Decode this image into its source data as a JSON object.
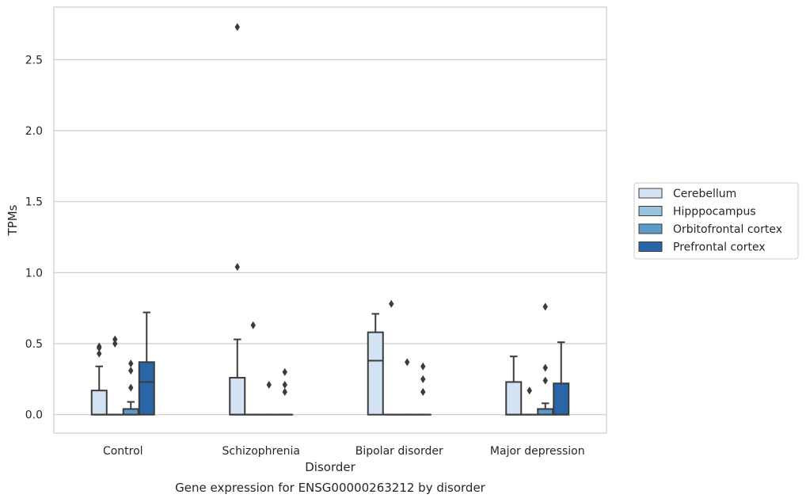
{
  "chart_data": {
    "type": "box",
    "title": "",
    "caption": "Gene expression for ENSG00000263212 by disorder",
    "xlabel": "Disorder",
    "ylabel": "TPMs",
    "ylim": [
      -0.13,
      2.87
    ],
    "yticks": [
      "0.0",
      "0.5",
      "1.0",
      "1.5",
      "2.0",
      "2.5"
    ],
    "ytick_values": [
      0.0,
      0.5,
      1.0,
      1.5,
      2.0,
      2.5
    ],
    "categories": [
      "Control",
      "Schizophrenia",
      "Bipolar disorder",
      "Major depression"
    ],
    "grid": "horizontal",
    "legend_position": "right",
    "series": [
      {
        "name": "Cerebellum",
        "color": "#d4e3f3",
        "boxes": [
          {
            "q1": 0.0,
            "median": 0.0,
            "q3": 0.17,
            "whisker_low": 0.0,
            "whisker_high": 0.34,
            "outliers": [
              0.43,
              0.47,
              0.48
            ]
          },
          {
            "q1": 0.0,
            "median": 0.0,
            "q3": 0.26,
            "whisker_low": 0.0,
            "whisker_high": 0.53,
            "outliers": [
              1.04,
              2.73
            ]
          },
          {
            "q1": 0.0,
            "median": 0.38,
            "q3": 0.58,
            "whisker_low": 0.0,
            "whisker_high": 0.71,
            "outliers": []
          },
          {
            "q1": 0.0,
            "median": 0.0,
            "q3": 0.23,
            "whisker_low": 0.0,
            "whisker_high": 0.41,
            "outliers": []
          }
        ]
      },
      {
        "name": "Hipppocampus",
        "color": "#9ac3de",
        "boxes": [
          {
            "q1": 0.0,
            "median": 0.0,
            "q3": 0.0,
            "whisker_low": 0.0,
            "whisker_high": 0.0,
            "outliers": [
              0.5,
              0.53
            ]
          },
          {
            "q1": 0.0,
            "median": 0.0,
            "q3": 0.0,
            "whisker_low": 0.0,
            "whisker_high": 0.0,
            "outliers": [
              0.63
            ]
          },
          {
            "q1": 0.0,
            "median": 0.0,
            "q3": 0.0,
            "whisker_low": 0.0,
            "whisker_high": 0.0,
            "outliers": [
              0.78
            ]
          },
          {
            "q1": 0.0,
            "median": 0.0,
            "q3": 0.0,
            "whisker_low": 0.0,
            "whisker_high": 0.0,
            "outliers": [
              0.17
            ]
          }
        ]
      },
      {
        "name": "Orbitofrontal cortex",
        "color": "#5b9bc9",
        "boxes": [
          {
            "q1": 0.0,
            "median": 0.0,
            "q3": 0.04,
            "whisker_low": 0.0,
            "whisker_high": 0.09,
            "outliers": [
              0.19,
              0.31,
              0.36
            ]
          },
          {
            "q1": 0.0,
            "median": 0.0,
            "q3": 0.0,
            "whisker_low": 0.0,
            "whisker_high": 0.0,
            "outliers": [
              0.21
            ]
          },
          {
            "q1": 0.0,
            "median": 0.0,
            "q3": 0.0,
            "whisker_low": 0.0,
            "whisker_high": 0.0,
            "outliers": [
              0.37
            ]
          },
          {
            "q1": 0.0,
            "median": 0.0,
            "q3": 0.04,
            "whisker_low": 0.0,
            "whisker_high": 0.08,
            "outliers": [
              0.24,
              0.33,
              0.76
            ]
          }
        ]
      },
      {
        "name": "Prefrontal cortex",
        "color": "#2866a8",
        "boxes": [
          {
            "q1": 0.0,
            "median": 0.23,
            "q3": 0.37,
            "whisker_low": 0.0,
            "whisker_high": 0.72,
            "outliers": []
          },
          {
            "q1": 0.0,
            "median": 0.0,
            "q3": 0.0,
            "whisker_low": 0.0,
            "whisker_high": 0.0,
            "outliers": [
              0.16,
              0.21,
              0.3
            ]
          },
          {
            "q1": 0.0,
            "median": 0.0,
            "q3": 0.0,
            "whisker_low": 0.0,
            "whisker_high": 0.0,
            "outliers": [
              0.16,
              0.25,
              0.34
            ]
          },
          {
            "q1": 0.0,
            "median": 0.0,
            "q3": 0.22,
            "whisker_low": 0.0,
            "whisker_high": 0.51,
            "outliers": []
          }
        ]
      }
    ]
  }
}
